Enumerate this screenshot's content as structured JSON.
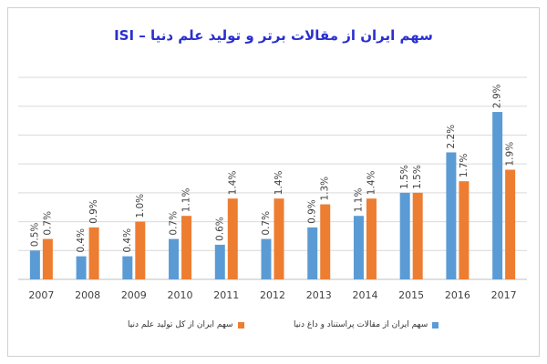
{
  "chart_data": {
    "type": "bar",
    "title": "سهم ایران از مقالات برتر و تولید علم دنیا – ISI",
    "categories": [
      "2007",
      "2008",
      "2009",
      "2010",
      "2011",
      "2012",
      "2013",
      "2014",
      "2015",
      "2016",
      "2017"
    ],
    "series": [
      {
        "name": "سهم ایران از مقالات پراستناد و داغ دنیا",
        "color": "#5b9bd5",
        "values": [
          0.5,
          0.4,
          0.4,
          0.7,
          0.6,
          0.7,
          0.9,
          1.1,
          1.5,
          2.2,
          2.9
        ],
        "labels": [
          "0.5%",
          "0.4%",
          "0.4%",
          "0.7%",
          "0.6%",
          "0.7%",
          "0.9%",
          "1.1%",
          "1.5%",
          "2.2%",
          "2.9%"
        ]
      },
      {
        "name": "سهم ایران از کل تولید علم دنیا",
        "color": "#ed7d31",
        "values": [
          0.7,
          0.9,
          1.0,
          1.1,
          1.4,
          1.4,
          1.3,
          1.4,
          1.5,
          1.7,
          1.9
        ],
        "labels": [
          "0.7%",
          "0.9%",
          "1.0%",
          "1.1%",
          "1.4%",
          "1.4%",
          "1.3%",
          "1.4%",
          "1.5%",
          "1.7%",
          "1.9%"
        ]
      }
    ],
    "ylim": [
      0,
      3.5
    ],
    "grid": true,
    "legend": "bottom",
    "xlabel": "",
    "ylabel": ""
  }
}
